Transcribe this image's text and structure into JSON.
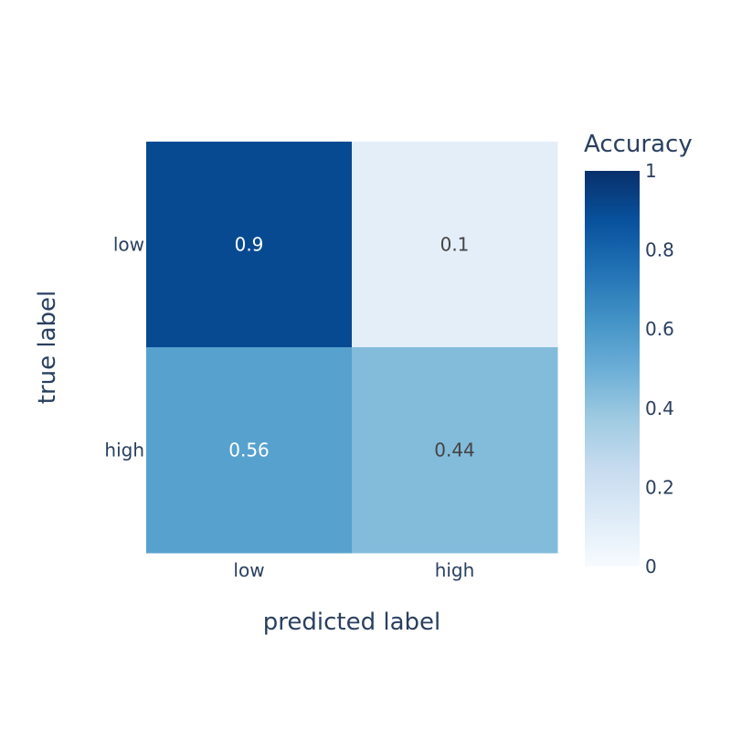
{
  "chart_data": {
    "type": "heatmap",
    "x_categories": [
      "low",
      "high"
    ],
    "y_categories": [
      "low",
      "high"
    ],
    "values": [
      [
        0.9,
        0.1
      ],
      [
        0.56,
        0.44
      ]
    ],
    "value_labels": [
      [
        "0.9",
        "0.1"
      ],
      [
        "0.56",
        "0.44"
      ]
    ],
    "xlabel": "predicted label",
    "ylabel": "true label",
    "colorbar": {
      "title": "Accuracy",
      "range": [
        0,
        1
      ],
      "ticks": [
        0,
        0.2,
        0.4,
        0.6,
        0.8,
        1
      ],
      "tick_labels": [
        "0",
        "0.2",
        "0.4",
        "0.6",
        "0.8",
        "1"
      ],
      "colorscale": [
        "#f7fbff",
        "#deebf7",
        "#c6dbef",
        "#9ecae1",
        "#6baed6",
        "#4292c6",
        "#2171b5",
        "#08519c",
        "#08306b"
      ]
    }
  }
}
